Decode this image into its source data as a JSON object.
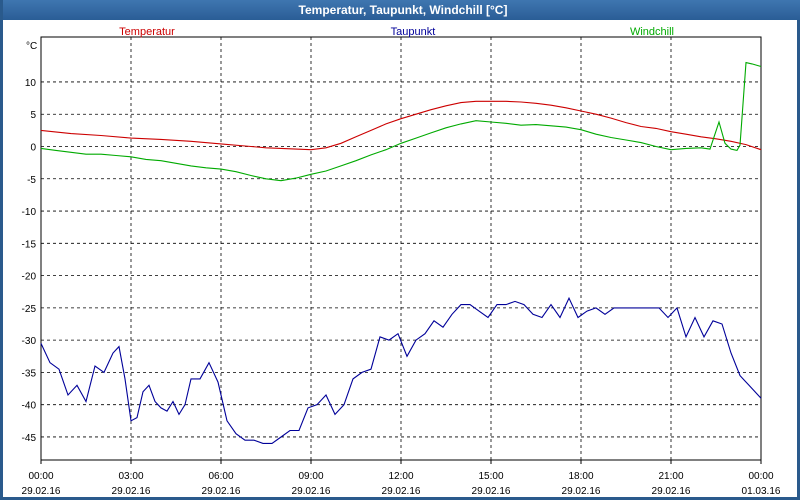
{
  "window": {
    "title": "Temperatur, Taupunkt, Windchill [°C]"
  },
  "chart_data": {
    "type": "line",
    "title": "Temperatur, Taupunkt, Windchill [°C]",
    "ylabel": "°C",
    "ylim": [
      -50,
      15
    ],
    "yticks": [
      10,
      5,
      0,
      -5,
      -10,
      -15,
      -20,
      -25,
      -30,
      -35,
      -40,
      -45
    ],
    "xlim": [
      0,
      24
    ],
    "xticks": [
      {
        "x": 0,
        "time": "00:00",
        "date": "29.02.16"
      },
      {
        "x": 3,
        "time": "03:00",
        "date": "29.02.16"
      },
      {
        "x": 6,
        "time": "06:00",
        "date": "29.02.16"
      },
      {
        "x": 9,
        "time": "09:00",
        "date": "29.02.16"
      },
      {
        "x": 12,
        "time": "12:00",
        "date": "29.02.16"
      },
      {
        "x": 15,
        "time": "15:00",
        "date": "29.02.16"
      },
      {
        "x": 18,
        "time": "18:00",
        "date": "29.02.16"
      },
      {
        "x": 21,
        "time": "21:00",
        "date": "29.02.16"
      },
      {
        "x": 24,
        "time": "00:00",
        "date": "01.03.16"
      }
    ],
    "grid": true,
    "series": [
      {
        "name": "Temperatur",
        "color": "#cc0000",
        "x": [
          0,
          1,
          2,
          3,
          4,
          5,
          6,
          7,
          7.5,
          8,
          8.5,
          9,
          9.5,
          10,
          10.5,
          11,
          11.5,
          12,
          12.5,
          13,
          13.5,
          14,
          14.5,
          15,
          15.5,
          16,
          16.5,
          17,
          17.5,
          18,
          18.5,
          19,
          19.5,
          20,
          20.5,
          21,
          21.5,
          22,
          22.5,
          23,
          23.5,
          24
        ],
        "y": [
          2.5,
          2.0,
          1.7,
          1.3,
          1.1,
          0.8,
          0.4,
          0.0,
          -0.2,
          -0.3,
          -0.4,
          -0.5,
          -0.2,
          0.5,
          1.5,
          2.5,
          3.5,
          4.3,
          5.0,
          5.7,
          6.3,
          6.8,
          7.0,
          7.0,
          7.0,
          6.9,
          6.7,
          6.4,
          6.0,
          5.5,
          5.0,
          4.4,
          3.7,
          3.1,
          2.8,
          2.3,
          1.9,
          1.5,
          1.2,
          0.8,
          0.3,
          -0.5
        ]
      },
      {
        "name": "Taupunkt",
        "color": "#000099",
        "x": [
          0,
          0.3,
          0.6,
          0.9,
          1.2,
          1.5,
          1.8,
          2.1,
          2.4,
          2.6,
          2.8,
          3.0,
          3.2,
          3.4,
          3.6,
          3.8,
          4.0,
          4.2,
          4.4,
          4.6,
          4.8,
          5.0,
          5.3,
          5.6,
          5.9,
          6.2,
          6.5,
          6.8,
          7.1,
          7.4,
          7.7,
          8.0,
          8.3,
          8.6,
          8.9,
          9.2,
          9.5,
          9.8,
          10.1,
          10.4,
          10.7,
          11.0,
          11.3,
          11.6,
          11.9,
          12.2,
          12.5,
          12.8,
          13.1,
          13.4,
          13.7,
          14.0,
          14.3,
          14.6,
          14.9,
          15.2,
          15.5,
          15.8,
          16.1,
          16.4,
          16.7,
          17.0,
          17.3,
          17.6,
          17.9,
          18.2,
          18.5,
          18.8,
          19.1,
          19.4,
          19.7,
          20.0,
          20.3,
          20.6,
          20.9,
          21.2,
          21.5,
          21.8,
          22.1,
          22.4,
          22.7,
          23.0,
          23.3,
          23.6,
          23.9,
          24
        ],
        "y": [
          -30.5,
          -33.5,
          -34.5,
          -38.5,
          -37.0,
          -39.5,
          -34.0,
          -35.0,
          -32.0,
          -31.0,
          -36.0,
          -42.5,
          -42.0,
          -38.0,
          -37.0,
          -39.5,
          -40.5,
          -41.0,
          -39.5,
          -41.5,
          -40.0,
          -36.0,
          -36.0,
          -33.5,
          -36.5,
          -42.5,
          -44.5,
          -45.5,
          -45.5,
          -46.0,
          -46.0,
          -45.0,
          -44.0,
          -44.0,
          -40.5,
          -40.0,
          -38.5,
          -41.5,
          -40.0,
          -36.0,
          -35.0,
          -34.5,
          -29.5,
          -30.0,
          -29.0,
          -32.5,
          -30.0,
          -29.0,
          -27.0,
          -28.0,
          -26.0,
          -24.5,
          -24.5,
          -25.5,
          -26.5,
          -24.5,
          -24.5,
          -24.0,
          -24.5,
          -26.0,
          -26.5,
          -24.5,
          -26.5,
          -23.5,
          -26.5,
          -25.5,
          -25.0,
          -26.0,
          -25.0,
          -25.0,
          -25.0,
          -25.0,
          -25.0,
          -25.0,
          -26.5,
          -25.0,
          -29.5,
          -26.5,
          -29.5,
          -27.0,
          -27.5,
          -32.0,
          -35.5,
          -37.0,
          -38.5,
          -39.0
        ]
      },
      {
        "name": "Windchill",
        "color": "#00aa00",
        "x": [
          0,
          0.5,
          1,
          1.5,
          2,
          2.5,
          3,
          3.5,
          4,
          4.5,
          5,
          5.5,
          6,
          6.5,
          7,
          7.5,
          8,
          8.5,
          9,
          9.5,
          10,
          10.5,
          11,
          11.5,
          12,
          12.5,
          13,
          13.5,
          14,
          14.5,
          15,
          15.5,
          16,
          16.5,
          17,
          17.5,
          18,
          18.5,
          19,
          19.5,
          20,
          20.5,
          21,
          21.5,
          22,
          22.3,
          22.6,
          22.8,
          23.0,
          23.2,
          23.3,
          23.5,
          23.7,
          24
        ],
        "y": [
          -0.3,
          -0.6,
          -0.9,
          -1.2,
          -1.2,
          -1.4,
          -1.6,
          -2.0,
          -2.2,
          -2.6,
          -3.0,
          -3.3,
          -3.5,
          -3.9,
          -4.5,
          -5.0,
          -5.3,
          -4.9,
          -4.3,
          -3.8,
          -3.0,
          -2.2,
          -1.3,
          -0.5,
          0.5,
          1.3,
          2.1,
          2.9,
          3.5,
          4.0,
          3.8,
          3.6,
          3.3,
          3.4,
          3.2,
          3.0,
          2.6,
          1.9,
          1.4,
          1.0,
          0.6,
          0.0,
          -0.5,
          -0.3,
          -0.2,
          -0.4,
          3.8,
          0.5,
          -0.4,
          -0.6,
          0.2,
          13.0,
          12.8,
          12.4
        ]
      }
    ]
  }
}
